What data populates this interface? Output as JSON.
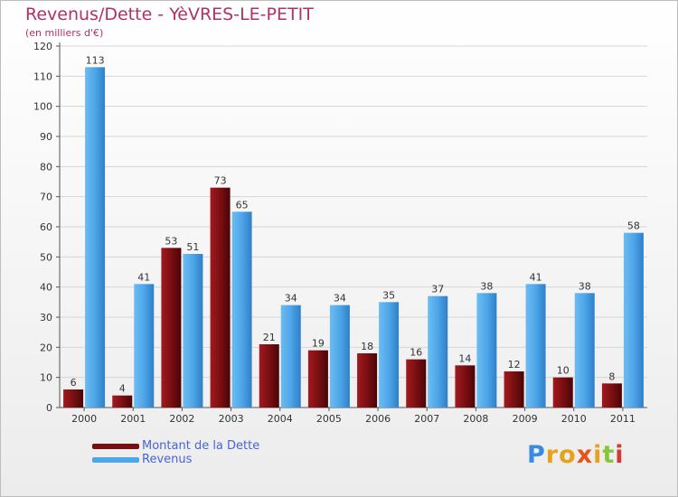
{
  "chart_data": {
    "type": "bar",
    "title": "Revenus/Dette - YèVRES-LE-PETIT",
    "subtitle": "(en milliers d'€)",
    "categories": [
      "2000",
      "2001",
      "2002",
      "2003",
      "2004",
      "2005",
      "2006",
      "2007",
      "2008",
      "2009",
      "2010",
      "2011"
    ],
    "series": [
      {
        "name": "Montant de la Dette",
        "color": "#7a0f12",
        "values": [
          6,
          4,
          53,
          73,
          21,
          19,
          18,
          16,
          14,
          12,
          10,
          8
        ]
      },
      {
        "name": "Revenus",
        "color": "#4ea6e8",
        "values": [
          113,
          41,
          51,
          65,
          34,
          34,
          35,
          37,
          38,
          41,
          38,
          58
        ]
      }
    ],
    "ylim": [
      0,
      120
    ],
    "yticks": [
      0,
      10,
      20,
      30,
      40,
      50,
      60,
      70,
      80,
      90,
      100,
      110,
      120
    ],
    "grid": true,
    "legend": "bottom-left"
  },
  "logo": {
    "letters": [
      "P",
      "r",
      "o",
      "x",
      "i",
      "t",
      "i"
    ],
    "colors": [
      "#3a8be0",
      "#e8a21a",
      "#e8a21a",
      "#e8531a",
      "#e8a21a",
      "#8ac43a",
      "#d23a3a"
    ]
  }
}
